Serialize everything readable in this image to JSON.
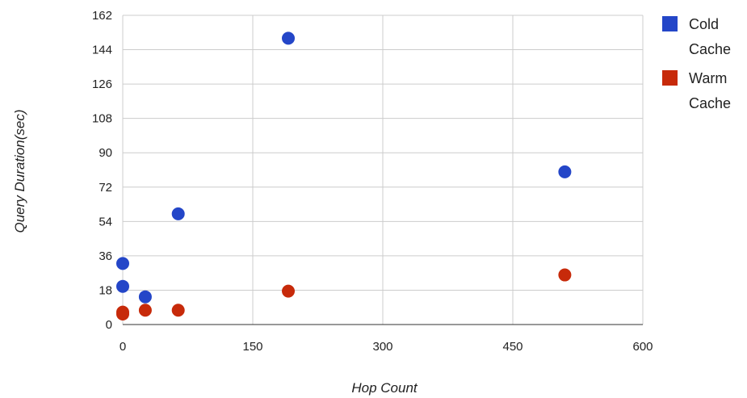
{
  "chart_data": {
    "type": "scatter",
    "xlabel": "Hop Count",
    "ylabel": "Query Duration(sec)",
    "xlim": [
      0,
      600
    ],
    "ylim": [
      0,
      162
    ],
    "x_ticks": [
      "0",
      "150",
      "300",
      "450",
      "600"
    ],
    "y_ticks": [
      "0",
      "18",
      "36",
      "54",
      "72",
      "90",
      "108",
      "126",
      "144",
      "162"
    ],
    "grid": true,
    "legend_position": "right",
    "series": [
      {
        "name": "Cold Cache",
        "legend_lines": [
          "Cold",
          "Cache"
        ],
        "color": "#2446c8",
        "points": [
          [
            0,
            32
          ],
          [
            0,
            20
          ],
          [
            26,
            14.5
          ],
          [
            64,
            58
          ],
          [
            191,
            150
          ],
          [
            510,
            80
          ]
        ]
      },
      {
        "name": "Warm Cache",
        "legend_lines": [
          "Warm",
          "Cache"
        ],
        "color": "#c72a0a",
        "points": [
          [
            0,
            5.5
          ],
          [
            0,
            6.5
          ],
          [
            26,
            7.5
          ],
          [
            64,
            7.5
          ],
          [
            191,
            17.5
          ],
          [
            510,
            26
          ]
        ]
      }
    ]
  }
}
